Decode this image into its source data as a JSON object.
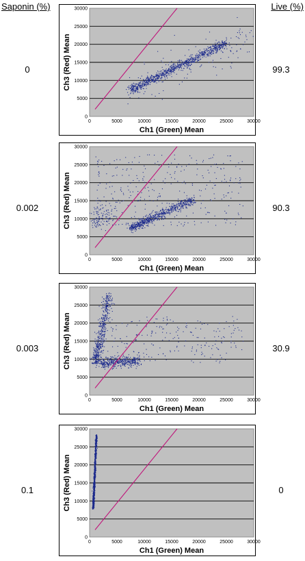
{
  "header": {
    "left": "Saponin (%)",
    "right": "Live (%)"
  },
  "chart_data": [
    {
      "type": "scatter",
      "saponin_label": "0",
      "live_label": "99.3",
      "xlabel": "Ch1 (Green) Mean",
      "ylabel": "Ch3 (Red) Mean",
      "xlim": [
        0,
        30000
      ],
      "ylim": [
        0,
        30000
      ],
      "xticks": [
        "0",
        "5000",
        "10000",
        "15000",
        "20000",
        "25000",
        "30000"
      ],
      "yticks": [
        "0",
        "5000",
        "10000",
        "15000",
        "20000",
        "25000",
        "30000"
      ],
      "grid": "horizontal",
      "diagonal": [
        [
          1000,
          2000
        ],
        [
          16000,
          30000
        ]
      ],
      "clusters": [
        {
          "x": [
            7500,
            25000
          ],
          "y": [
            7500,
            20500
          ],
          "w": 0.8,
          "spread": 600
        },
        {
          "x": [
            8000,
            29000
          ],
          "y": [
            8000,
            22000
          ],
          "w": 0.15,
          "spread": 2500
        }
      ],
      "points_color": "#1c2a8c",
      "line_color": "#c0147a"
    },
    {
      "type": "scatter",
      "saponin_label": "0.002",
      "live_label": "90.3",
      "xlabel": "Ch1 (Green) Mean",
      "ylabel": "Ch3 (Red) Mean",
      "xlim": [
        0,
        30000
      ],
      "ylim": [
        0,
        30000
      ],
      "xticks": [
        "0",
        "5000",
        "10000",
        "15000",
        "20000",
        "25000",
        "30000"
      ],
      "yticks": [
        "0",
        "5000",
        "10000",
        "15000",
        "20000",
        "25000",
        "30000"
      ],
      "grid": "horizontal",
      "diagonal": [
        [
          1000,
          2000
        ],
        [
          16000,
          30000
        ]
      ],
      "clusters": [
        {
          "x": [
            7500,
            19000
          ],
          "y": [
            7500,
            15500
          ],
          "w": 0.6,
          "spread": 600
        },
        {
          "x": [
            1000,
            28000
          ],
          "y": [
            8000,
            28000
          ],
          "w": 0.3,
          "spread": 6000
        },
        {
          "x": [
            500,
            4000
          ],
          "y": [
            9000,
            12000
          ],
          "w": 0.1,
          "spread": 1500
        }
      ],
      "points_color": "#1c2a8c",
      "line_color": "#c0147a"
    },
    {
      "type": "scatter",
      "saponin_label": "0.003",
      "live_label": "30.9",
      "xlabel": "Ch1 (Green) Mean",
      "ylabel": "Ch3 (Red) Mean",
      "xlim": [
        0,
        30000
      ],
      "ylim": [
        0,
        30000
      ],
      "xticks": [
        "0",
        "5000",
        "10000",
        "15000",
        "20000",
        "25000",
        "30000"
      ],
      "yticks": [
        "0",
        "5000",
        "10000",
        "15000",
        "20000",
        "25000",
        "30000"
      ],
      "grid": "horizontal",
      "diagonal": [
        [
          1000,
          2000
        ],
        [
          16000,
          30000
        ]
      ],
      "clusters": [
        {
          "x": [
            1000,
            3500
          ],
          "y": [
            9000,
            28000
          ],
          "w": 0.45,
          "spread": 700
        },
        {
          "x": [
            2000,
            9000
          ],
          "y": [
            9000,
            9500
          ],
          "w": 0.35,
          "spread": 700
        },
        {
          "x": [
            3000,
            28000
          ],
          "y": [
            9000,
            22000
          ],
          "w": 0.2,
          "spread": 4000
        }
      ],
      "points_color": "#1c2a8c",
      "line_color": "#c0147a"
    },
    {
      "type": "scatter",
      "saponin_label": "0.1",
      "live_label": "0",
      "xlabel": "Ch1 (Green) Mean",
      "ylabel": "Ch3 (Red) Mean",
      "xlim": [
        0,
        30000
      ],
      "ylim": [
        0,
        30000
      ],
      "xticks": [
        "0",
        "5000",
        "10000",
        "15000",
        "20000",
        "25000",
        "30000"
      ],
      "yticks": [
        "0",
        "5000",
        "10000",
        "15000",
        "20000",
        "25000",
        "30000"
      ],
      "grid": "horizontal",
      "diagonal": [
        [
          1000,
          2000
        ],
        [
          16000,
          30000
        ]
      ],
      "clusters": [
        {
          "x": [
            600,
            1200
          ],
          "y": [
            8000,
            28500
          ],
          "w": 1.0,
          "spread": 120
        }
      ],
      "points_color": "#1c2a8c",
      "line_color": "#c0147a"
    }
  ]
}
